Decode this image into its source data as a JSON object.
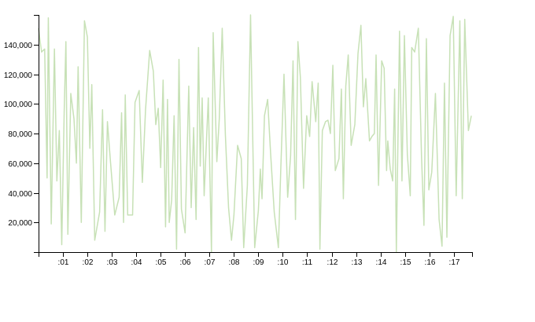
{
  "chart_data": {
    "type": "line",
    "title": "",
    "xlabel": "",
    "ylabel": "",
    "xlim": [
      0,
      17.75
    ],
    "ylim": [
      0,
      160000
    ],
    "grid": false,
    "x_tick_labels": [
      ":01",
      ":02",
      ":03",
      ":04",
      ":05",
      ":06",
      ":07",
      ":08",
      ":09",
      ":10",
      ":11",
      ":12",
      ":13",
      ":14",
      ":15",
      ":16",
      ":17"
    ],
    "y_tick_labels": [
      "20,000",
      "40,000",
      "60,000",
      "80,000",
      "100,000",
      "120,000",
      "140,000"
    ],
    "y_ticks": [
      20000,
      40000,
      60000,
      80000,
      100000,
      120000,
      140000
    ],
    "colors": {
      "series": "#c7e1b6",
      "axis": "#000000"
    },
    "series": [
      {
        "values": [
          [
            0.0,
            151000
          ],
          [
            0.12,
            135000
          ],
          [
            0.25,
            137000
          ],
          [
            0.35,
            50000
          ],
          [
            0.4,
            158000
          ],
          [
            0.52,
            19000
          ],
          [
            0.65,
            137000
          ],
          [
            0.75,
            48000
          ],
          [
            0.85,
            82000
          ],
          [
            0.95,
            5000
          ],
          [
            1.05,
            95000
          ],
          [
            1.12,
            142000
          ],
          [
            1.2,
            12000
          ],
          [
            1.32,
            107000
          ],
          [
            1.45,
            90000
          ],
          [
            1.55,
            60000
          ],
          [
            1.62,
            125000
          ],
          [
            1.75,
            20000
          ],
          [
            1.88,
            156000
          ],
          [
            2.0,
            145000
          ],
          [
            2.1,
            70000
          ],
          [
            2.18,
            113000
          ],
          [
            2.3,
            8000
          ],
          [
            2.5,
            27000
          ],
          [
            2.62,
            96000
          ],
          [
            2.72,
            14000
          ],
          [
            2.82,
            88000
          ],
          [
            2.95,
            60000
          ],
          [
            3.12,
            25000
          ],
          [
            3.3,
            37000
          ],
          [
            3.4,
            94000
          ],
          [
            3.48,
            20000
          ],
          [
            3.55,
            106000
          ],
          [
            3.65,
            25000
          ],
          [
            3.85,
            25000
          ],
          [
            3.95,
            101000
          ],
          [
            4.12,
            109000
          ],
          [
            4.25,
            47000
          ],
          [
            4.38,
            96000
          ],
          [
            4.55,
            136000
          ],
          [
            4.7,
            122000
          ],
          [
            4.8,
            86000
          ],
          [
            4.9,
            97000
          ],
          [
            5.0,
            57000
          ],
          [
            5.1,
            116000
          ],
          [
            5.2,
            17000
          ],
          [
            5.28,
            103000
          ],
          [
            5.35,
            20000
          ],
          [
            5.45,
            35000
          ],
          [
            5.55,
            92000
          ],
          [
            5.65,
            2000
          ],
          [
            5.75,
            130000
          ],
          [
            5.85,
            29000
          ],
          [
            6.0,
            13000
          ],
          [
            6.15,
            112000
          ],
          [
            6.25,
            30000
          ],
          [
            6.35,
            84000
          ],
          [
            6.45,
            22000
          ],
          [
            6.55,
            138000
          ],
          [
            6.62,
            58000
          ],
          [
            6.7,
            104000
          ],
          [
            6.78,
            38000
          ],
          [
            6.95,
            104000
          ],
          [
            7.08,
            0
          ],
          [
            7.15,
            148000
          ],
          [
            7.3,
            61000
          ],
          [
            7.4,
            90000
          ],
          [
            7.52,
            151000
          ],
          [
            7.65,
            79000
          ],
          [
            7.78,
            30000
          ],
          [
            7.9,
            8000
          ],
          [
            8.0,
            25000
          ],
          [
            8.15,
            72000
          ],
          [
            8.3,
            63000
          ],
          [
            8.4,
            3000
          ],
          [
            8.55,
            45000
          ],
          [
            8.68,
            160000
          ],
          [
            8.85,
            3000
          ],
          [
            9.0,
            28000
          ],
          [
            9.08,
            56000
          ],
          [
            9.15,
            36000
          ],
          [
            9.25,
            92000
          ],
          [
            9.38,
            103000
          ],
          [
            9.5,
            67000
          ],
          [
            9.65,
            27000
          ],
          [
            9.82,
            3000
          ],
          [
            9.92,
            57000
          ],
          [
            10.05,
            120000
          ],
          [
            10.2,
            37000
          ],
          [
            10.32,
            65000
          ],
          [
            10.42,
            129000
          ],
          [
            10.52,
            22000
          ],
          [
            10.62,
            142000
          ],
          [
            10.72,
            118000
          ],
          [
            10.85,
            43000
          ],
          [
            10.98,
            92000
          ],
          [
            11.1,
            78000
          ],
          [
            11.2,
            115000
          ],
          [
            11.35,
            88000
          ],
          [
            11.45,
            114000
          ],
          [
            11.52,
            2000
          ],
          [
            11.62,
            82000
          ],
          [
            11.75,
            88000
          ],
          [
            11.85,
            89000
          ],
          [
            11.95,
            80000
          ],
          [
            12.05,
            126000
          ],
          [
            12.15,
            55000
          ],
          [
            12.3,
            63000
          ],
          [
            12.4,
            110000
          ],
          [
            12.48,
            36000
          ],
          [
            12.58,
            112000
          ],
          [
            12.68,
            133000
          ],
          [
            12.8,
            72000
          ],
          [
            12.95,
            86000
          ],
          [
            13.08,
            134000
          ],
          [
            13.2,
            153000
          ],
          [
            13.3,
            98000
          ],
          [
            13.4,
            117000
          ],
          [
            13.55,
            75000
          ],
          [
            13.65,
            78000
          ],
          [
            13.75,
            80000
          ],
          [
            13.82,
            133000
          ],
          [
            13.92,
            45000
          ],
          [
            14.05,
            129000
          ],
          [
            14.15,
            124000
          ],
          [
            14.25,
            55000
          ],
          [
            14.3,
            75000
          ],
          [
            14.4,
            56000
          ],
          [
            14.5,
            48000
          ],
          [
            14.58,
            110000
          ],
          [
            14.65,
            0
          ],
          [
            14.78,
            149000
          ],
          [
            14.88,
            48000
          ],
          [
            14.98,
            146000
          ],
          [
            15.1,
            66000
          ],
          [
            15.22,
            38000
          ],
          [
            15.28,
            138000
          ],
          [
            15.4,
            135000
          ],
          [
            15.55,
            151000
          ],
          [
            15.68,
            65000
          ],
          [
            15.78,
            18000
          ],
          [
            15.88,
            144000
          ],
          [
            15.98,
            42000
          ],
          [
            16.1,
            54000
          ],
          [
            16.25,
            107000
          ],
          [
            16.4,
            22000
          ],
          [
            16.52,
            4000
          ],
          [
            16.62,
            114000
          ],
          [
            16.72,
            10000
          ],
          [
            16.85,
            146000
          ],
          [
            16.98,
            159000
          ],
          [
            17.1,
            38000
          ],
          [
            17.25,
            156000
          ],
          [
            17.35,
            36000
          ],
          [
            17.45,
            157000
          ],
          [
            17.6,
            82000
          ],
          [
            17.72,
            92000
          ]
        ]
      }
    ]
  }
}
